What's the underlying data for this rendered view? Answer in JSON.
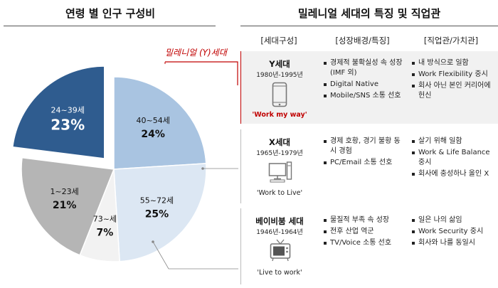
{
  "left_title": "연령 별 인구 구성비",
  "right_title": "밀레니얼 세대의 특징 및 직업관",
  "callout": "밀레니얼 (Y)세대",
  "columns": [
    "[세대구성]",
    "[성장배경/특징]",
    "[직업관/가치관]"
  ],
  "chart_data": {
    "type": "pie",
    "title": "연령 별 인구 구성비",
    "slices": [
      {
        "label": "24~39세",
        "value": 23,
        "value_label": "23%",
        "exploded": true,
        "color": "#2f5c8f",
        "text_color": "#ffffff"
      },
      {
        "label": "40~54세",
        "value": 24,
        "value_label": "24%",
        "exploded": false,
        "color": "#a9c4e1",
        "text_color": "#111111"
      },
      {
        "label": "55~72세",
        "value": 25,
        "value_label": "25%",
        "exploded": false,
        "color": "#dce7f3",
        "text_color": "#111111"
      },
      {
        "label": "73~세",
        "value": 7,
        "value_label": "7%",
        "exploded": false,
        "color": "#f2f2f2",
        "text_color": "#111111"
      },
      {
        "label": "1~23세",
        "value": 21,
        "value_label": "21%",
        "exploded": false,
        "color": "#b5b5b5",
        "text_color": "#111111"
      }
    ]
  },
  "generations": [
    {
      "name": "Y세대",
      "years": "1980년-1995년",
      "icon": "smartphone-icon",
      "motto": "'Work my way'",
      "background": [
        "경제적 불확실성 속 성장(IMF 외)",
        "Digital Native",
        "Mobile/SNS 소통 선호"
      ],
      "values": [
        "내 방식으로 일함",
        "Work Flexibility 중시",
        "회사 아닌 본인 커리어에 헌신"
      ]
    },
    {
      "name": "X세대",
      "years": "1965년-1979년",
      "icon": "desktop-computer-icon",
      "motto": "'Work to Live'",
      "background": [
        "경제 호황, 경기 불황 동시 경험",
        "PC/Email 소통 선호"
      ],
      "values": [
        "살기 위해 일함",
        "Work & Life Balance 중시",
        "회사에 충성하나 올인 X"
      ]
    },
    {
      "name": "베이비붐 세대",
      "years": "1946년-1964년",
      "icon": "television-icon",
      "motto": "'Live to work'",
      "background": [
        "물질적 부족 속 성장",
        "전후 산업 역군",
        "TV/Voice 소통 선호"
      ],
      "values": [
        "일은 나의 삶임",
        "Work Security 중시",
        "회사와 나를 동일시"
      ]
    }
  ]
}
